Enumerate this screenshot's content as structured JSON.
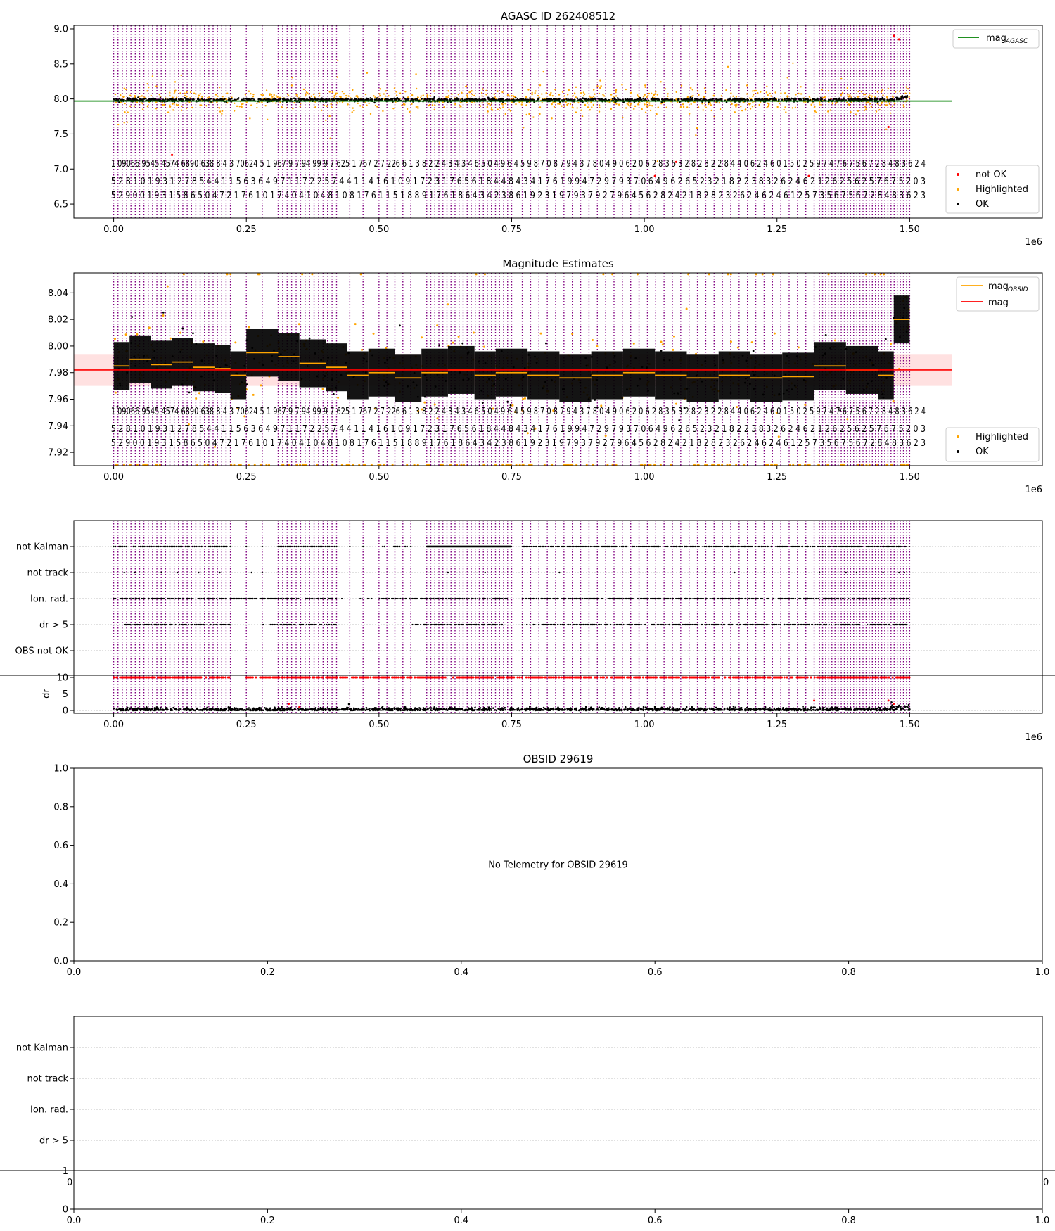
{
  "colors": {
    "ok": "#000000",
    "highlighted": "#ffa500",
    "not_ok": "#ff0000",
    "mag_agasc": "#008000",
    "mag_line": "#ff0000",
    "mag_obsid": "#ffa500",
    "obsid_boundary": "#800080",
    "mag_band": "#ffc8c8",
    "grid": "#b0b0b0"
  },
  "chart_data": [
    {
      "type": "scatter",
      "title": "AGASC ID 262408512",
      "xlabel": "",
      "ylabel": "",
      "x_offset_label": "1e6",
      "xlim": [
        -0.075,
        1.75
      ],
      "ylim": [
        6.3,
        9.05
      ],
      "xticks": [
        0.0,
        0.25,
        0.5,
        0.75,
        1.0,
        1.25,
        1.5
      ],
      "xtick_labels": [
        "0.00",
        "0.25",
        "0.50",
        "0.75",
        "1.00",
        "1.25",
        "1.50"
      ],
      "yticks": [
        6.5,
        7.0,
        7.5,
        8.0,
        8.5,
        9.0
      ],
      "ytick_labels": [
        "6.5",
        "7.0",
        "7.5",
        "8.0",
        "8.5",
        "9.0"
      ],
      "grid": false,
      "lines": [
        {
          "name": "mag_AGASC",
          "x": [
            -0.075,
            1.58
          ],
          "y": [
            7.97,
            7.97
          ],
          "color": "#008000"
        }
      ],
      "series_summary": {
        "ok_level": 7.99,
        "highlighted_spread": [
          7.4,
          8.4
        ],
        "x_range": [
          0.0,
          1.5
        ]
      },
      "legend_top": {
        "position": "top-right",
        "entries": [
          {
            "label": "mag",
            "sub": "AGASC"
          }
        ]
      },
      "legend_bottom": {
        "position": "bottom-right",
        "entries": [
          "not OK",
          "Highlighted",
          "OK"
        ]
      },
      "annotations": [
        {
          "row": 1,
          "text": "1 09066 9545 4574 6890 638 8 4 3 70624 5 1 967 9 7 94 99 9 7 625 1 767 2 7 226 6 1 3 8 2 2 4 3 4 3 4 6 5 0 4 9 6 4 5 9 8 7 0 8 7 9 4 3 7 8 0 4 9 0 6 2 0 6 2 8 3 5 3 2 8 2 3 2 2 8 4 4 0 6 2 4 6 0 1 5 0 2 5 9 7 4 7 6 7 5 6 7 2 8 4 8 3 6 2 4"
        },
        {
          "row": 2,
          "text": "5 2 8 1 0 1 9 3 1 2 7 8 5 4 4 1 1 5 6 3 6 4 9 7 1 1 7 2 2 5 7 4 4 1 1 4 1 6 1 0 9 1 7 2 3 1 7 6 5 6 1 8 4 4 8 4 3 4 1 7 6 1 9 9 4 7 2 9 7 9 3 7 0 6 4 9 6 2 6 5 2 3 2 1 8 2 2 3 8 3 2 6 2 4 6 2 1 2 6 2 5 6 2 5 7 6 7 5 2 0 3"
        },
        {
          "row": 3,
          "text": "5 2 9 0 0 1 9 3 1 5 8 6 5 0 4 7 2 1 7 6 1 0 1 7 4 0 4 1 0 4 8 1 0 8 1 7 6 1 1 5 1 8 8 9 1 7 6 1 8 6 4 3 4 2 3 8 6 1 9 2 3 1 9 7 9 3 7 9 2 7 9 6 4 5 6 2 8 2 4 2 1 8 2 8 2 3 2 6 2 4 6 2 4 6 1 2 5 7 3 5 6 7 5 6 7 2 8 4 8 3 6 2 3"
        }
      ]
    },
    {
      "type": "scatter",
      "title": "Magnitude Estimates",
      "xlabel": "",
      "ylabel": "",
      "x_offset_label": "1e6",
      "xlim": [
        -0.075,
        1.75
      ],
      "ylim": [
        7.91,
        8.055
      ],
      "xticks": [
        0.0,
        0.25,
        0.5,
        0.75,
        1.0,
        1.25,
        1.5
      ],
      "xtick_labels": [
        "0.00",
        "0.25",
        "0.50",
        "0.75",
        "1.00",
        "1.25",
        "1.50"
      ],
      "yticks": [
        7.92,
        7.94,
        7.96,
        7.98,
        8.0,
        8.02,
        8.04
      ],
      "ytick_labels": [
        "7.92",
        "7.94",
        "7.96",
        "7.98",
        "8.00",
        "8.02",
        "8.04"
      ],
      "grid": false,
      "lines": [
        {
          "name": "mag",
          "x": [
            -0.075,
            1.58
          ],
          "y": [
            7.982,
            7.982
          ],
          "color": "#ff0000"
        }
      ],
      "band": {
        "x": [
          -0.075,
          1.58
        ],
        "y": [
          7.97,
          7.994
        ]
      },
      "mag_obsid_segments": [
        [
          0.0,
          0.03,
          7.985
        ],
        [
          0.03,
          0.07,
          7.99
        ],
        [
          0.07,
          0.11,
          7.986
        ],
        [
          0.11,
          0.15,
          7.988
        ],
        [
          0.15,
          0.19,
          7.984
        ],
        [
          0.19,
          0.22,
          7.983
        ],
        [
          0.22,
          0.25,
          7.978
        ],
        [
          0.25,
          0.31,
          7.995
        ],
        [
          0.31,
          0.35,
          7.992
        ],
        [
          0.35,
          0.4,
          7.987
        ],
        [
          0.4,
          0.44,
          7.984
        ],
        [
          0.44,
          0.48,
          7.978
        ],
        [
          0.48,
          0.53,
          7.98
        ],
        [
          0.53,
          0.58,
          7.976
        ],
        [
          0.58,
          0.63,
          7.98
        ],
        [
          0.63,
          0.68,
          7.982
        ],
        [
          0.68,
          0.72,
          7.978
        ],
        [
          0.72,
          0.78,
          7.98
        ],
        [
          0.78,
          0.84,
          7.978
        ],
        [
          0.84,
          0.9,
          7.976
        ],
        [
          0.9,
          0.96,
          7.978
        ],
        [
          0.96,
          1.02,
          7.98
        ],
        [
          1.02,
          1.08,
          7.978
        ],
        [
          1.08,
          1.14,
          7.976
        ],
        [
          1.14,
          1.2,
          7.978
        ],
        [
          1.2,
          1.26,
          7.976
        ],
        [
          1.26,
          1.32,
          7.977
        ],
        [
          1.32,
          1.38,
          7.985
        ],
        [
          1.38,
          1.44,
          7.982
        ],
        [
          1.44,
          1.47,
          7.978
        ],
        [
          1.47,
          1.5,
          8.02
        ]
      ],
      "legend_top": {
        "position": "top-right",
        "entries": [
          {
            "label": "mag",
            "sub": "OBSID"
          },
          {
            "label": "mag"
          }
        ]
      },
      "legend_bottom": {
        "position": "bottom-right",
        "entries": [
          "Highlighted",
          "OK"
        ]
      },
      "annotations": [
        {
          "row": 1,
          "text": "1 09066 9545 4574 6890 638 8 4 3 70624 5 1 967 9 7 94 99 9 7 625 1 767 2 7 226 6 1 3 8 2 2 4 3 4 3 4 6 5 0 4 9 6 4 5 9 8 7 0 8 7 9 4 3 7 8 0 4 9 0 6 2 0 6 2 8 3 5 3 2 8 2 3 2 2 8 4 4 0 6 2 4 6 0 1 5 0 2 5 9 7 4 7 6 7 5 6 7 2 8 4 8 3 6 2 4"
        },
        {
          "row": 2,
          "text": "5 2 8 1 0 1 9 3 1 2 7 8 5 4 4 1 1 5 6 3 6 4 9 7 1 1 7 2 2 5 7 4 4 1 1 4 1 6 1 0 9 1 7 2 3 1 7 6 5 6 1 8 4 4 8 4 3 4 1 7 6 1 9 9 4 7 2 9 7 9 3 7 0 6 4 9 6 2 6 5 2 3 2 1 8 2 2 3 8 3 2 6 2 4 6 2 1 2 6 2 5 6 2 5 7 6 7 5 2 0 3"
        },
        {
          "row": 3,
          "text": "5 2 9 0 0 1 9 3 1 5 8 6 5 0 4 7 2 1 7 6 1 0 1 7 4 0 4 1 0 4 8 1 0 8 1 7 6 1 1 5 1 8 8 9 1 7 6 1 8 6 4 3 4 2 3 8 6 1 9 2 3 1 9 7 9 3 7 9 2 7 9 6 4 5 6 2 8 2 4 2 1 8 2 8 2 3 2 6 2 4 6 2 4 6 1 2 5 7 3 5 6 7 5 6 7 2 8 4 8 3 6 2 3"
        }
      ]
    },
    {
      "type": "scatter",
      "title": "",
      "x_offset_label": "1e6",
      "xlim": [
        -0.075,
        1.75
      ],
      "xticks": [
        0.0,
        0.25,
        0.5,
        0.75,
        1.0,
        1.25,
        1.5
      ],
      "xtick_labels": [
        "0.00",
        "0.25",
        "0.50",
        "0.75",
        "1.00",
        "1.25",
        "1.50"
      ],
      "flag_rows": [
        "not Kalman",
        "not track",
        "Ion. rad.",
        "dr > 5",
        "OBS not OK"
      ],
      "dr_ylabel": "dr",
      "dr_ylim": [
        -0.5,
        10.5
      ],
      "dr_yticks": [
        0,
        5,
        10
      ],
      "dr_ytick_labels": [
        "0",
        "5",
        "10"
      ],
      "grid": true
    },
    {
      "type": "scatter",
      "title": "OBSID 29619",
      "xlim": [
        0.0,
        1.0
      ],
      "ylim": [
        0.0,
        1.0
      ],
      "xticks": [
        0.0,
        0.2,
        0.4,
        0.6,
        0.8,
        1.0
      ],
      "xtick_labels": [
        "0.0",
        "0.2",
        "0.4",
        "0.6",
        "0.8",
        "1.0"
      ],
      "yticks": [
        0.0,
        0.2,
        0.4,
        0.6,
        0.8,
        1.0
      ],
      "ytick_labels": [
        "0.0",
        "0.2",
        "0.4",
        "0.6",
        "0.8",
        "1.0"
      ],
      "message": "No Telemetry for OBSID 29619"
    },
    {
      "type": "scatter",
      "title": "",
      "xlim": [
        0.0,
        1.0
      ],
      "ylim": [
        0.0,
        1.0
      ],
      "flag_rows": [
        "not Kalman",
        "not track",
        "Ion. rad.",
        "dr > 5"
      ],
      "dr_top_tick_label": "1",
      "hidden_xtick_left": "0",
      "hidden_xtick_right": "0",
      "xticks": [
        0.0,
        0.2,
        0.4,
        0.6,
        0.8,
        1.0
      ],
      "xtick_labels": [
        "0.0",
        "0.2",
        "0.4",
        "0.6",
        "0.8",
        "1.0"
      ],
      "yticks": [
        0.0
      ],
      "ytick_labels": [
        "0"
      ]
    }
  ]
}
